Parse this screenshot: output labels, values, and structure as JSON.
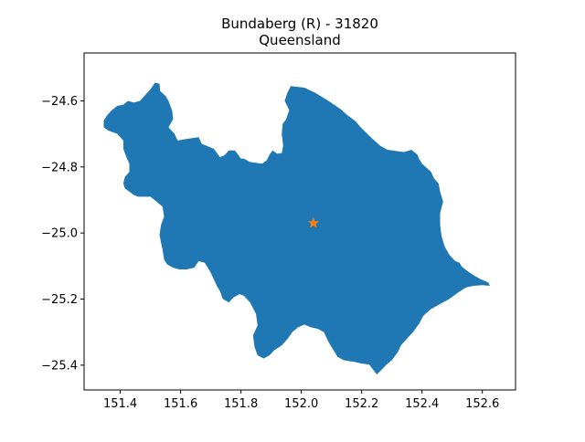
{
  "title": {
    "line1": "Bundaberg (R) - 31820",
    "line2": "Queensland"
  },
  "colors": {
    "region_fill": "#1f77b4",
    "marker": "#ff7f0e",
    "axes": "#000000",
    "background": "#ffffff"
  },
  "map": {
    "region_name": "Bundaberg (R)",
    "region_code": "31820",
    "state": "Queensland",
    "centroid_marker": {
      "shape": "star-icon",
      "lon": 152.04,
      "lat": -24.97
    }
  },
  "axes": {
    "xlim": [
      151.28,
      152.71
    ],
    "ylim": [
      -25.475,
      -24.455
    ],
    "x_ticks": [
      "151.4",
      "151.6",
      "151.8",
      "152.0",
      "152.2",
      "152.4",
      "152.6"
    ],
    "x_tick_values": [
      151.4,
      151.6,
      151.8,
      152.0,
      152.2,
      152.4,
      152.6
    ],
    "y_ticks": [
      "−24.6",
      "−24.8",
      "−25.0",
      "−25.2",
      "−25.4"
    ],
    "y_tick_values": [
      -24.6,
      -24.8,
      -25.0,
      -25.2,
      -25.4
    ]
  },
  "region_outline_lonlat": [
    [
      151.515,
      -24.545
    ],
    [
      151.53,
      -24.548
    ],
    [
      151.532,
      -24.57
    ],
    [
      151.55,
      -24.585
    ],
    [
      151.56,
      -24.6
    ],
    [
      151.572,
      -24.63
    ],
    [
      151.575,
      -24.655
    ],
    [
      151.56,
      -24.68
    ],
    [
      151.58,
      -24.7
    ],
    [
      151.59,
      -24.72
    ],
    [
      151.62,
      -24.715
    ],
    [
      151.66,
      -24.71
    ],
    [
      151.67,
      -24.73
    ],
    [
      151.71,
      -24.745
    ],
    [
      151.73,
      -24.77
    ],
    [
      151.745,
      -24.765
    ],
    [
      151.76,
      -24.75
    ],
    [
      151.78,
      -24.75
    ],
    [
      151.79,
      -24.762
    ],
    [
      151.8,
      -24.775
    ],
    [
      151.81,
      -24.775
    ],
    [
      151.83,
      -24.785
    ],
    [
      151.87,
      -24.79
    ],
    [
      151.885,
      -24.78
    ],
    [
      151.895,
      -24.762
    ],
    [
      151.905,
      -24.75
    ],
    [
      151.92,
      -24.76
    ],
    [
      151.935,
      -24.758
    ],
    [
      151.94,
      -24.735
    ],
    [
      151.935,
      -24.7
    ],
    [
      151.938,
      -24.67
    ],
    [
      151.95,
      -24.655
    ],
    [
      151.96,
      -24.628
    ],
    [
      151.945,
      -24.6
    ],
    [
      151.953,
      -24.577
    ],
    [
      151.965,
      -24.555
    ],
    [
      152.01,
      -24.56
    ],
    [
      152.045,
      -24.575
    ],
    [
      152.09,
      -24.6
    ],
    [
      152.13,
      -24.625
    ],
    [
      152.155,
      -24.645
    ],
    [
      152.18,
      -24.662
    ],
    [
      152.195,
      -24.678
    ],
    [
      152.23,
      -24.71
    ],
    [
      152.26,
      -24.735
    ],
    [
      152.285,
      -24.748
    ],
    [
      152.315,
      -24.752
    ],
    [
      152.34,
      -24.755
    ],
    [
      152.365,
      -24.748
    ],
    [
      152.385,
      -24.763
    ],
    [
      152.39,
      -24.775
    ],
    [
      152.4,
      -24.79
    ],
    [
      152.412,
      -24.8
    ],
    [
      152.43,
      -24.815
    ],
    [
      152.44,
      -24.835
    ],
    [
      152.455,
      -24.85
    ],
    [
      152.46,
      -24.875
    ],
    [
      152.47,
      -24.905
    ],
    [
      152.46,
      -24.94
    ],
    [
      152.46,
      -24.975
    ],
    [
      152.465,
      -25.01
    ],
    [
      152.475,
      -25.04
    ],
    [
      152.49,
      -25.065
    ],
    [
      152.51,
      -25.085
    ],
    [
      152.525,
      -25.09
    ],
    [
      152.53,
      -25.1
    ],
    [
      152.55,
      -25.115
    ],
    [
      152.575,
      -25.13
    ],
    [
      152.595,
      -25.14
    ],
    [
      152.62,
      -25.15
    ],
    [
      152.625,
      -25.16
    ],
    [
      152.6,
      -25.158
    ],
    [
      152.57,
      -25.16
    ],
    [
      152.545,
      -25.165
    ],
    [
      152.52,
      -25.18
    ],
    [
      152.49,
      -25.2
    ],
    [
      152.46,
      -25.215
    ],
    [
      152.43,
      -25.23
    ],
    [
      152.405,
      -25.25
    ],
    [
      152.39,
      -25.275
    ],
    [
      152.37,
      -25.3
    ],
    [
      152.35,
      -25.32
    ],
    [
      152.33,
      -25.34
    ],
    [
      152.32,
      -25.36
    ],
    [
      152.3,
      -25.385
    ],
    [
      152.28,
      -25.4
    ],
    [
      152.265,
      -25.415
    ],
    [
      152.25,
      -25.428
    ],
    [
      152.235,
      -25.41
    ],
    [
      152.225,
      -25.398
    ],
    [
      152.2,
      -25.395
    ],
    [
      152.175,
      -25.39
    ],
    [
      152.14,
      -25.385
    ],
    [
      152.12,
      -25.375
    ],
    [
      152.11,
      -25.36
    ],
    [
      152.09,
      -25.33
    ],
    [
      152.075,
      -25.3
    ],
    [
      152.055,
      -25.29
    ],
    [
      152.03,
      -25.285
    ],
    [
      152.01,
      -25.277
    ],
    [
      151.99,
      -25.285
    ],
    [
      151.97,
      -25.3
    ],
    [
      151.955,
      -25.32
    ],
    [
      151.935,
      -25.34
    ],
    [
      151.91,
      -25.355
    ],
    [
      151.895,
      -25.37
    ],
    [
      151.875,
      -25.38
    ],
    [
      151.855,
      -25.37
    ],
    [
      151.845,
      -25.345
    ],
    [
      151.84,
      -25.31
    ],
    [
      151.855,
      -25.28
    ],
    [
      151.85,
      -25.245
    ],
    [
      151.83,
      -25.21
    ],
    [
      151.81,
      -25.19
    ],
    [
      151.795,
      -25.185
    ],
    [
      151.775,
      -25.195
    ],
    [
      151.76,
      -25.21
    ],
    [
      151.74,
      -25.2
    ],
    [
      151.73,
      -25.175
    ],
    [
      151.72,
      -25.16
    ],
    [
      151.7,
      -25.12
    ],
    [
      151.68,
      -25.09
    ],
    [
      151.66,
      -25.085
    ],
    [
      151.645,
      -25.105
    ],
    [
      151.62,
      -25.11
    ],
    [
      151.595,
      -25.11
    ],
    [
      151.575,
      -25.105
    ],
    [
      151.555,
      -25.095
    ],
    [
      151.545,
      -25.08
    ],
    [
      151.54,
      -25.05
    ],
    [
      151.535,
      -25.03
    ],
    [
      151.53,
      -25.005
    ],
    [
      151.535,
      -24.975
    ],
    [
      151.545,
      -24.95
    ],
    [
      151.54,
      -24.92
    ],
    [
      151.52,
      -24.905
    ],
    [
      151.5,
      -24.89
    ],
    [
      151.475,
      -24.89
    ],
    [
      151.46,
      -24.89
    ],
    [
      151.445,
      -24.885
    ],
    [
      151.43,
      -24.875
    ],
    [
      151.415,
      -24.865
    ],
    [
      151.41,
      -24.85
    ],
    [
      151.415,
      -24.83
    ],
    [
      151.43,
      -24.815
    ],
    [
      151.43,
      -24.79
    ],
    [
      151.42,
      -24.77
    ],
    [
      151.41,
      -24.745
    ],
    [
      151.41,
      -24.72
    ],
    [
      151.39,
      -24.7
    ],
    [
      151.375,
      -24.695
    ],
    [
      151.36,
      -24.69
    ],
    [
      151.345,
      -24.68
    ],
    [
      151.345,
      -24.66
    ],
    [
      151.355,
      -24.645
    ],
    [
      151.37,
      -24.63
    ],
    [
      151.39,
      -24.615
    ],
    [
      151.41,
      -24.612
    ],
    [
      151.425,
      -24.6
    ],
    [
      151.445,
      -24.605
    ],
    [
      151.465,
      -24.6
    ],
    [
      151.48,
      -24.585
    ],
    [
      151.5,
      -24.565
    ]
  ]
}
